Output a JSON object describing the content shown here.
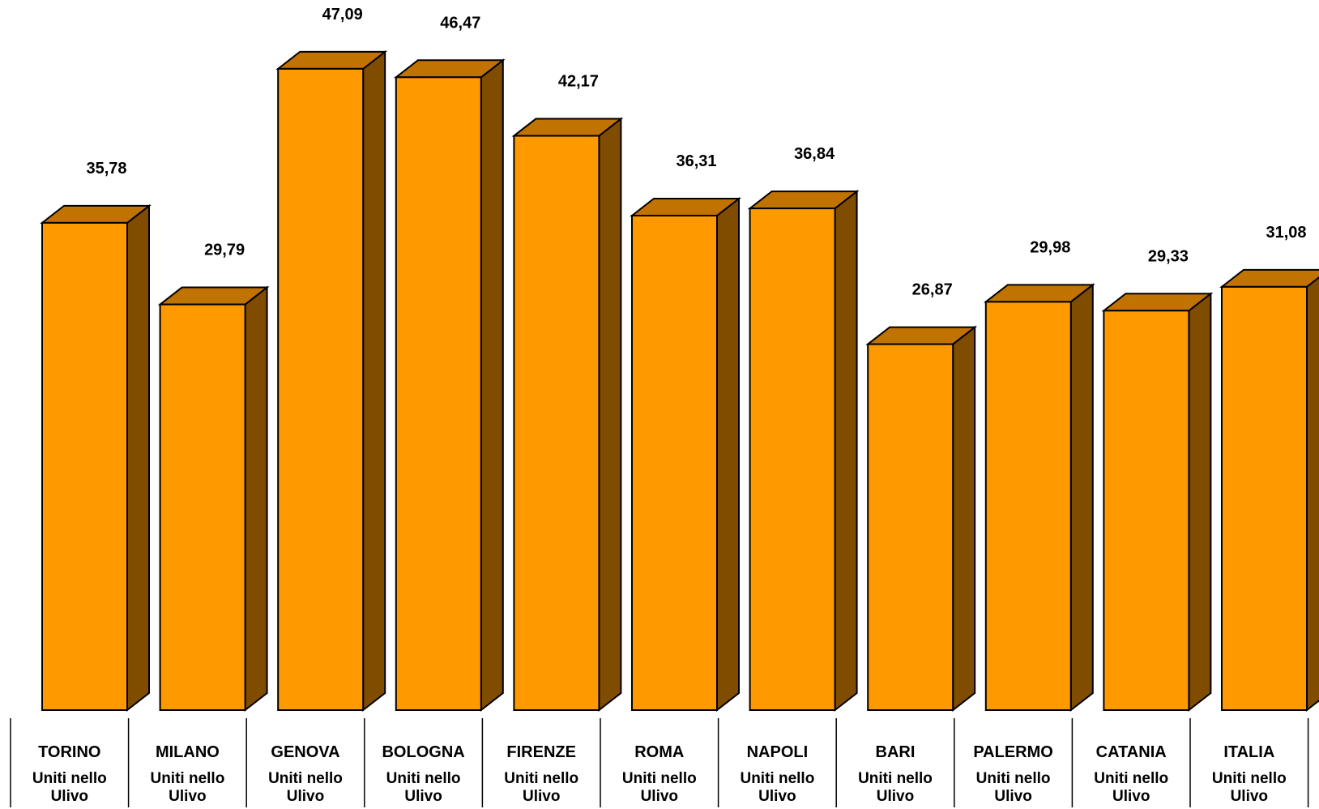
{
  "chart_data": {
    "type": "bar",
    "style": "3d",
    "categories": [
      "TORINO",
      "MILANO",
      "GENOVA",
      "BOLOGNA",
      "FIRENZE",
      "ROMA",
      "NAPOLI",
      "BARI",
      "PALERMO",
      "CATANIA",
      "ITALIA"
    ],
    "series": [
      {
        "name": "Uniti nello Ulivo",
        "values": [
          35.78,
          29.79,
          47.09,
          46.47,
          42.17,
          36.31,
          36.84,
          26.87,
          29.98,
          29.33,
          31.08
        ],
        "labels": [
          "35,78",
          "29,79",
          "47,09",
          "46,47",
          "42,17",
          "36,31",
          "36,84",
          "26,87",
          "29,98",
          "29,33",
          "31,08"
        ]
      }
    ],
    "ylim": [
      0,
      50
    ],
    "grid": false,
    "legend": "none",
    "colors": {
      "front": "#ff9900",
      "side": "#7f4c00",
      "top": "#c07300",
      "stroke": "#000000"
    }
  }
}
